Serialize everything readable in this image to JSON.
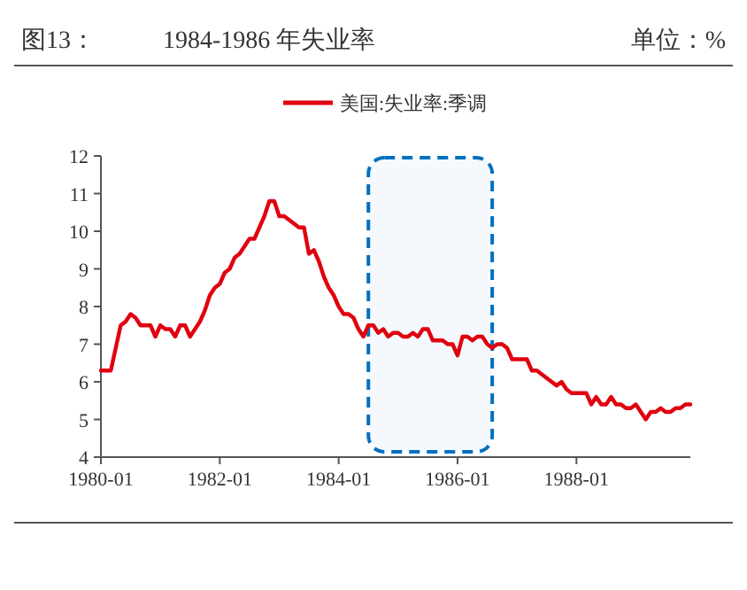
{
  "chart_data": {
    "type": "line",
    "title": "1984-1986 年失业率",
    "annotations": [
      "图13：",
      "单位：%"
    ],
    "x": [
      "1980-01",
      "1980-02",
      "1980-03",
      "1980-04",
      "1980-05",
      "1980-06",
      "1980-07",
      "1980-08",
      "1980-09",
      "1980-10",
      "1980-11",
      "1980-12",
      "1981-01",
      "1981-02",
      "1981-03",
      "1981-04",
      "1981-05",
      "1981-06",
      "1981-07",
      "1981-08",
      "1981-09",
      "1981-10",
      "1981-11",
      "1981-12",
      "1982-01",
      "1982-02",
      "1982-03",
      "1982-04",
      "1982-05",
      "1982-06",
      "1982-07",
      "1982-08",
      "1982-09",
      "1982-10",
      "1982-11",
      "1982-12",
      "1983-01",
      "1983-02",
      "1983-03",
      "1983-04",
      "1983-05",
      "1983-06",
      "1983-07",
      "1983-08",
      "1983-09",
      "1983-10",
      "1983-11",
      "1983-12",
      "1984-01",
      "1984-02",
      "1984-03",
      "1984-04",
      "1984-05",
      "1984-06",
      "1984-07",
      "1984-08",
      "1984-09",
      "1984-10",
      "1984-11",
      "1984-12",
      "1985-01",
      "1985-02",
      "1985-03",
      "1985-04",
      "1985-05",
      "1985-06",
      "1985-07",
      "1985-08",
      "1985-09",
      "1985-10",
      "1985-11",
      "1985-12",
      "1986-01",
      "1986-02",
      "1986-03",
      "1986-04",
      "1986-05",
      "1986-06",
      "1986-07",
      "1986-08",
      "1986-09",
      "1986-10",
      "1986-11",
      "1986-12",
      "1987-01",
      "1987-02",
      "1987-03",
      "1987-04",
      "1987-05",
      "1987-06",
      "1987-07",
      "1987-08",
      "1987-09",
      "1987-10",
      "1987-11",
      "1987-12",
      "1988-01",
      "1988-02",
      "1988-03",
      "1988-04",
      "1988-05",
      "1988-06",
      "1988-07",
      "1988-08",
      "1988-09",
      "1988-10",
      "1988-11",
      "1988-12",
      "1989-01",
      "1989-02",
      "1989-03",
      "1989-04",
      "1989-05",
      "1989-06",
      "1989-07",
      "1989-08",
      "1989-09",
      "1989-10",
      "1989-11",
      "1989-12"
    ],
    "series": [
      {
        "name": "美国:失业率:季调",
        "color": "#e0000f",
        "values": [
          6.3,
          6.3,
          6.3,
          6.9,
          7.5,
          7.6,
          7.8,
          7.7,
          7.5,
          7.5,
          7.5,
          7.2,
          7.5,
          7.4,
          7.4,
          7.2,
          7.5,
          7.5,
          7.2,
          7.4,
          7.6,
          7.9,
          8.3,
          8.5,
          8.6,
          8.9,
          9.0,
          9.3,
          9.4,
          9.6,
          9.8,
          9.8,
          10.1,
          10.4,
          10.8,
          10.8,
          10.4,
          10.4,
          10.3,
          10.2,
          10.1,
          10.1,
          9.4,
          9.5,
          9.2,
          8.8,
          8.5,
          8.3,
          8.0,
          7.8,
          7.8,
          7.7,
          7.4,
          7.2,
          7.5,
          7.5,
          7.3,
          7.4,
          7.2,
          7.3,
          7.3,
          7.2,
          7.2,
          7.3,
          7.2,
          7.4,
          7.4,
          7.1,
          7.1,
          7.1,
          7.0,
          7.0,
          6.7,
          7.2,
          7.2,
          7.1,
          7.2,
          7.2,
          7.0,
          6.9,
          7.0,
          7.0,
          6.9,
          6.6,
          6.6,
          6.6,
          6.6,
          6.3,
          6.3,
          6.2,
          6.1,
          6.0,
          5.9,
          6.0,
          5.8,
          5.7,
          5.7,
          5.7,
          5.7,
          5.4,
          5.6,
          5.4,
          5.4,
          5.6,
          5.4,
          5.4,
          5.3,
          5.3,
          5.4,
          5.2,
          5.0,
          5.2,
          5.2,
          5.3,
          5.2,
          5.2,
          5.3,
          5.3,
          5.4,
          5.4
        ]
      }
    ],
    "xlim": [
      "1980-01",
      "1989-12"
    ],
    "xticks": [
      "1980-01",
      "1982-01",
      "1984-01",
      "1986-01",
      "1988-01"
    ],
    "ylim": [
      4,
      12
    ],
    "yticks": [
      4,
      5,
      6,
      7,
      8,
      9,
      10,
      11,
      12
    ],
    "bands": [
      {
        "axis": "x",
        "from": "1984-07",
        "to": "1986-08",
        "color": "#0070c0"
      }
    ],
    "legend": "top",
    "grid": false,
    "marker": "none",
    "line_style": "solid"
  }
}
